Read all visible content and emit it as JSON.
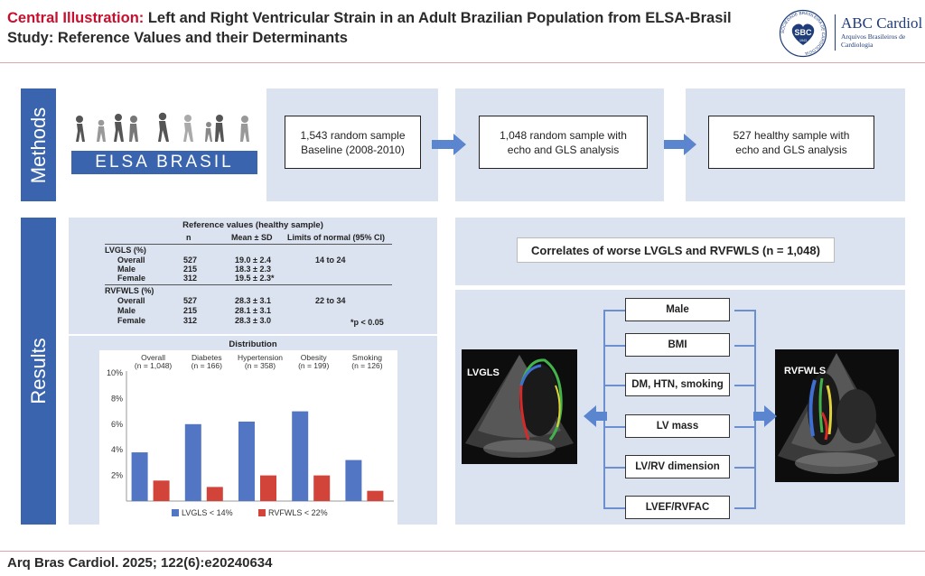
{
  "header": {
    "title_accent": "Central Illustration:",
    "title_line1": " Left and Right Ventricular Strain in an Adult Brazilian Population from ELSA-Brasil",
    "title_line2": "Study: Reference Values and their Determinants",
    "journal_logo_text": "ABC Cardiol",
    "journal_logo_subtext": "Arquivos Brasileiros de Cardiologia",
    "seal_text": "SBC",
    "seal_ring_text": "SOCIEDADE BRASILEIRA DE CARDIOLOGIA",
    "seal_year": "1943"
  },
  "methods": {
    "label": "Methods",
    "study_logo_text": "ELSA BRASIL",
    "steps": [
      {
        "line1": "1,543 random sample",
        "line2": "Baseline (2008-2010)"
      },
      {
        "line1": "1,048 random sample with",
        "line2": "echo and GLS analysis"
      },
      {
        "line1": "527 healthy sample with",
        "line2": "echo and GLS analysis"
      }
    ]
  },
  "results": {
    "label": "Results",
    "reference_table": {
      "title": "Reference values (healthy sample)",
      "headers": [
        "n",
        "Mean ± SD",
        "Limits of normal (95% CI)"
      ],
      "groups": [
        {
          "name": "LVGLS (%)",
          "limits": "14 to 24",
          "rows": [
            {
              "label": "Overall",
              "n": "527",
              "mean": "19.0 ± 2.4"
            },
            {
              "label": "Male",
              "n": "215",
              "mean": "18.3 ± 2.3"
            },
            {
              "label": "Female",
              "n": "312",
              "mean": "19.5 ± 2.3*"
            }
          ]
        },
        {
          "name": "RVFWLS (%)",
          "limits": "22 to 34",
          "rows": [
            {
              "label": "Overall",
              "n": "527",
              "mean": "28.3 ± 3.1"
            },
            {
              "label": "Male",
              "n": "215",
              "mean": "28.1 ± 3.1"
            },
            {
              "label": "Female",
              "n": "312",
              "mean": "28.3 ± 3.0"
            }
          ]
        }
      ],
      "footnote": "*p < 0.05"
    },
    "correlates": {
      "title": "Correlates of worse LVGLS and RVFWLS (n = 1,048)",
      "items": [
        "Male",
        "BMI",
        "DM, HTN, smoking",
        "LV mass",
        "LV/RV dimension",
        "LVEF/RVFAC"
      ],
      "echo_left_label": "LVGLS",
      "echo_right_label": "RVFWLS"
    }
  },
  "chart_data": {
    "type": "bar",
    "title": "Distribution",
    "categories": [
      "Overall",
      "Diabetes",
      "Hypertension",
      "Obesity",
      "Smoking"
    ],
    "category_n": [
      "(n = 1,048)",
      "(n = 166)",
      "(n = 358)",
      "(n = 199)",
      "(n = 126)"
    ],
    "series": [
      {
        "name": "LVGLS < 14%",
        "values": [
          3.8,
          6.0,
          6.2,
          7.0,
          3.2
        ],
        "color": "#5276c4"
      },
      {
        "name": "RVFWLS < 22%",
        "values": [
          1.6,
          1.1,
          2.0,
          2.0,
          0.8
        ],
        "color": "#d2443a"
      }
    ],
    "yticks": [
      "10%",
      "8%",
      "6%",
      "4%",
      "2%"
    ],
    "ylim": [
      0,
      10
    ],
    "legend_position": "bottom"
  },
  "footer": {
    "citation": "Arq Bras Cardiol. 2025; 122(6):e20240634"
  }
}
